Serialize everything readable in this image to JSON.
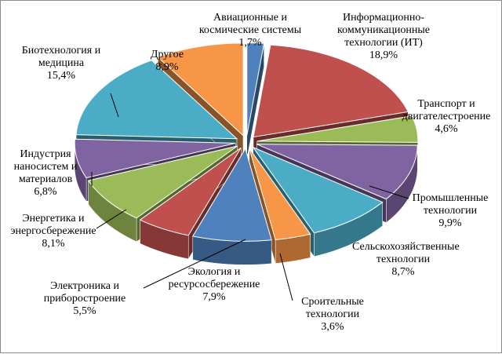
{
  "chart_data": {
    "type": "pie",
    "title": "",
    "legend": "none",
    "slices": [
      {
        "label": "Авиационные и космические системы",
        "value": 1.7,
        "text": "1,7%",
        "color": "#4f81bd"
      },
      {
        "label": "Информационно-коммуникационные технологии (ИТ)",
        "value": 18.9,
        "text": "18,9%",
        "color": "#c0504d"
      },
      {
        "label": "Транспорт и двигателестроение",
        "value": 4.6,
        "text": "4,6%",
        "color": "#9bbb59"
      },
      {
        "label": "Промышленные технологии",
        "value": 9.9,
        "text": "9,9%",
        "color": "#8064a2"
      },
      {
        "label": "Сельскохозяйственные технологии",
        "value": 8.7,
        "text": "8,7%",
        "color": "#4bacc6"
      },
      {
        "label": "Сроительные технологии",
        "value": 3.6,
        "text": "3,6%",
        "color": "#f79646"
      },
      {
        "label": "Экология и ресурсосбережение",
        "value": 7.9,
        "text": "7,9%",
        "color": "#4f81bd"
      },
      {
        "label": "Электроника и приборостроение",
        "value": 5.5,
        "text": "5,5%",
        "color": "#c0504d"
      },
      {
        "label": "Энергетика и энергосбережение",
        "value": 8.1,
        "text": "8,1%",
        "color": "#9bbb59"
      },
      {
        "label": "Индустрия наносистем и материалов",
        "value": 6.8,
        "text": "6,8%",
        "color": "#8064a2"
      },
      {
        "label": "Биотехнология и медицина",
        "value": 15.4,
        "text": "15,4%",
        "color": "#4bacc6"
      },
      {
        "label": "Другое",
        "value": 8.9,
        "text": "8,9%",
        "color": "#f79646"
      }
    ]
  }
}
